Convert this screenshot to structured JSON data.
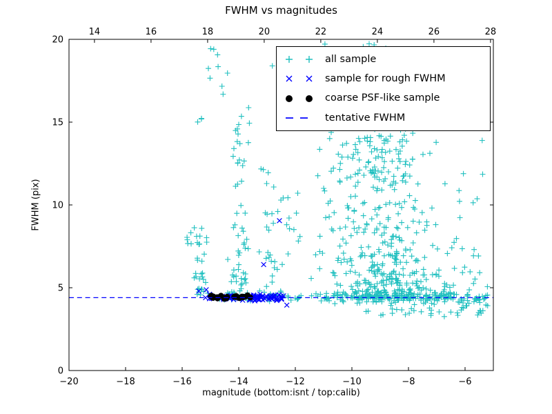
{
  "figure": {
    "background": "#ffffff"
  },
  "chart_data": {
    "type": "scatter",
    "title": "FWHM vs magnitudes",
    "xlabel": "magnitude (bottom:isnt / top:calib)",
    "ylabel": "FWHM (pix)",
    "xlim": [
      -20,
      -5
    ],
    "ylim": [
      0,
      20
    ],
    "x_ticks_bottom": [
      -20,
      -18,
      -16,
      -14,
      -12,
      -10,
      -8,
      -6
    ],
    "x_ticks_top": [
      14,
      16,
      18,
      20,
      22,
      24,
      26,
      28
    ],
    "top_axis_offset": 33.1,
    "y_ticks": [
      0,
      5,
      10,
      15,
      20
    ],
    "grid": false,
    "legend_position": "upper right",
    "tentative_fwhm": 4.4,
    "render_seed": 20,
    "series": [
      {
        "name": "all sample",
        "marker": "plus",
        "color": "#1fbfbf",
        "clusters": [
          {
            "n": 45,
            "x": [
              "u",
              -14.9,
              -11.6
            ],
            "y": [
              "n",
              4.45,
              0.12
            ]
          },
          {
            "n": 155,
            "x": [
              "u",
              -11.6,
              -5.05
            ],
            "y": [
              "n",
              4.4,
              0.16
            ]
          },
          {
            "n": 28,
            "x": [
              "n",
              -15.35,
              0.14
            ],
            "y": [
              "p",
              4.55,
              4.3,
              1.6
            ]
          },
          {
            "n": 8,
            "x": [
              "u",
              -15.85,
              -15.45
            ],
            "y": [
              "u",
              4.9,
              8.6
            ]
          },
          {
            "n": 6,
            "x": [
              "n",
              -14.85,
              0.16
            ],
            "y": [
              "u",
              17.3,
              19.6
            ]
          },
          {
            "n": 3,
            "x": [
              "n",
              -15.45,
              0.1
            ],
            "y": [
              "u",
              14.8,
              15.4
            ]
          },
          {
            "n": 48,
            "x": [
              "n",
              -13.95,
              0.16
            ],
            "y": [
              "p",
              4.7,
              10.6,
              1.7
            ]
          },
          {
            "n": 8,
            "x": [
              "n",
              -13.8,
              0.18
            ],
            "y": [
              "u",
              12.5,
              15.4
            ]
          },
          {
            "n": 30,
            "x": [
              "n",
              -12.9,
              0.2
            ],
            "y": [
              "p",
              4.7,
              8.3,
              1.6
            ]
          },
          {
            "n": 10,
            "x": [
              "u",
              -12.45,
              -11.5
            ],
            "y": [
              "n",
              9.0,
              0.8
            ]
          },
          {
            "n": 430,
            "x": [
              "n",
              -8.6,
              1.05,
              -11.2,
              -5.5
            ],
            "y": [
              "p",
              4.35,
              10.0,
              2.1
            ],
            "tilt": -0.09,
            "tiltY0": 6
          },
          {
            "n": 60,
            "x": [
              "n",
              -9.3,
              0.8
            ],
            "y": [
              "u",
              11.5,
              16.2
            ]
          },
          {
            "n": 12,
            "x": [
              "n",
              -9.1,
              0.9
            ],
            "y": [
              "u",
              16.3,
              18.6
            ]
          },
          {
            "n": 5,
            "x": [
              "u",
              -11.7,
              -8.5
            ],
            "y": [
              "u",
              19.3,
              19.9
            ]
          },
          {
            "n": 45,
            "x": [
              "u",
              -9.6,
              -5.15
            ],
            "y": [
              "u",
              3.2,
              4.2
            ]
          },
          {
            "n": 14,
            "x": [
              "u",
              -7.0,
              -5.1
            ],
            "y": [
              "u",
              4.9,
              9.5
            ]
          },
          {
            "n": 8,
            "x": [
              "u",
              -7.3,
              -5.3
            ],
            "y": [
              "u",
              9.5,
              14.0
            ]
          },
          {
            "n": 12,
            "x": [
              "u",
              -11.5,
              -10.2
            ],
            "y": [
              "u",
              5.0,
              9.0
            ]
          },
          {
            "n": 5,
            "x": [
              "u",
              -14.6,
              -12.6
            ],
            "y": [
              "u",
              15.5,
              18.5
            ]
          }
        ]
      },
      {
        "name": "sample for rough FWHM",
        "marker": "x",
        "color": "#0000ff",
        "clusters": [
          {
            "n": 40,
            "x": [
              "u",
              -15.2,
              -13.4
            ],
            "y": [
              "n",
              4.42,
              0.09
            ]
          },
          {
            "n": 48,
            "x": [
              "u",
              -13.5,
              -12.35
            ],
            "y": [
              "n",
              4.42,
              0.1
            ]
          }
        ],
        "points": [
          [
            -12.56,
            9.05
          ],
          [
            -13.12,
            6.4
          ],
          [
            -15.15,
            4.88
          ],
          [
            -12.3,
            3.95
          ],
          [
            -15.41,
            4.79
          ]
        ]
      },
      {
        "name": "coarse PSF-like sample",
        "marker": "dot",
        "color": "#000000",
        "clusters": [
          {
            "n": 26,
            "x": [
              "u",
              -15.08,
              -13.45
            ],
            "y": [
              "n",
              4.41,
              0.055
            ]
          }
        ]
      },
      {
        "name": "tentative FWHM",
        "marker": "dashed-line",
        "color": "#0000ff",
        "y": 4.4
      }
    ]
  }
}
